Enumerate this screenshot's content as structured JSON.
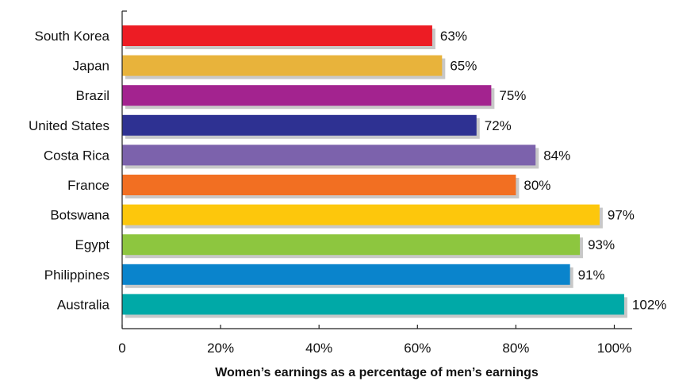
{
  "chart_data": {
    "type": "bar",
    "orientation": "horizontal",
    "categories": [
      "South Korea",
      "Japan",
      "Brazil",
      "United States",
      "Costa Rica",
      "France",
      "Botswana",
      "Egypt",
      "Philippines",
      "Australia"
    ],
    "values": [
      63,
      65,
      75,
      72,
      84,
      80,
      97,
      93,
      91,
      102
    ],
    "value_labels": [
      "63%",
      "65%",
      "75%",
      "72%",
      "84%",
      "80%",
      "97%",
      "93%",
      "91%",
      "102%"
    ],
    "colors": [
      "#ed1c24",
      "#e8b33b",
      "#a3238f",
      "#2e3192",
      "#7c62ac",
      "#f26f22",
      "#fdc70c",
      "#8dc63f",
      "#0a84cc",
      "#00a9a7"
    ],
    "xlim": [
      0,
      104
    ],
    "xticks": [
      0,
      20,
      40,
      60,
      80,
      100
    ],
    "xtick_labels": [
      "0",
      "20%",
      "40%",
      "60%",
      "80%",
      "100%"
    ],
    "xlabel": "Women’s earnings as a percentage of men’s earnings",
    "grid": false,
    "legend": "none",
    "bar_shadow": true
  }
}
